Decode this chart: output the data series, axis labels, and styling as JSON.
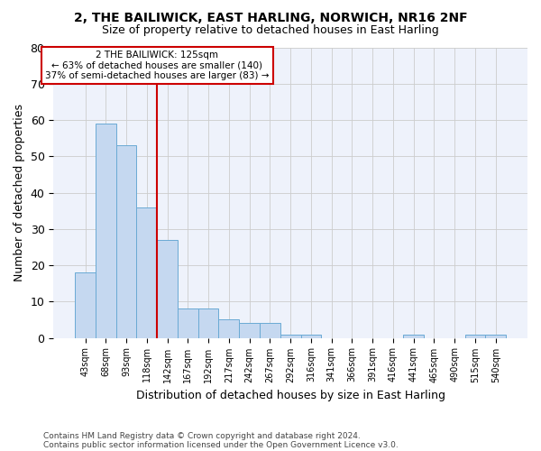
{
  "title1": "2, THE BAILIWICK, EAST HARLING, NORWICH, NR16 2NF",
  "title2": "Size of property relative to detached houses in East Harling",
  "xlabel": "Distribution of detached houses by size in East Harling",
  "ylabel": "Number of detached properties",
  "categories": [
    "43sqm",
    "68sqm",
    "93sqm",
    "118sqm",
    "142sqm",
    "167sqm",
    "192sqm",
    "217sqm",
    "242sqm",
    "267sqm",
    "292sqm",
    "316sqm",
    "341sqm",
    "366sqm",
    "391sqm",
    "416sqm",
    "441sqm",
    "465sqm",
    "490sqm",
    "515sqm",
    "540sqm"
  ],
  "values": [
    18,
    59,
    53,
    36,
    27,
    8,
    8,
    5,
    4,
    4,
    1,
    1,
    0,
    0,
    0,
    0,
    1,
    0,
    0,
    1,
    1
  ],
  "bar_color": "#c5d8f0",
  "bar_edge_color": "#6aaad4",
  "grid_color": "#cccccc",
  "vline_color": "#cc0000",
  "vline_pos": 3.5,
  "annotation_line1": "2 THE BAILIWICK: 125sqm",
  "annotation_line2": "← 63% of detached houses are smaller (140)",
  "annotation_line3": "37% of semi-detached houses are larger (83) →",
  "annotation_box_color": "#cc0000",
  "ylim": [
    0,
    80
  ],
  "yticks": [
    0,
    10,
    20,
    30,
    40,
    50,
    60,
    70,
    80
  ],
  "footer1": "Contains HM Land Registry data © Crown copyright and database right 2024.",
  "footer2": "Contains public sector information licensed under the Open Government Licence v3.0.",
  "bg_color": "#eef2fb"
}
